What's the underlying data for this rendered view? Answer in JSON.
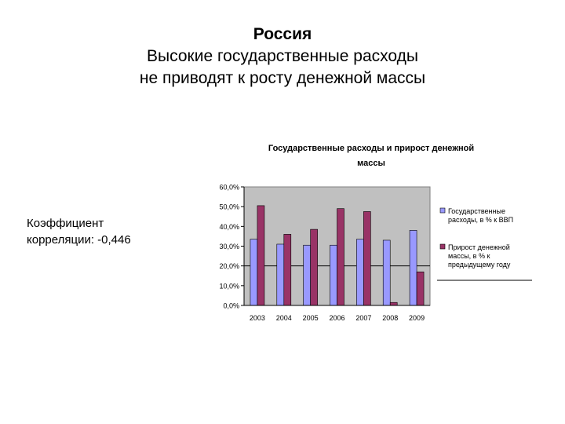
{
  "slide": {
    "title_line1": "Россия",
    "title_line2": "Высокие государственные расходы",
    "title_line3": "не приводят к росту денежной массы"
  },
  "correlation": {
    "line1": "Коэффициент",
    "line2": "корреляции: -0,446"
  },
  "chart_data": {
    "type": "bar",
    "title": "Государственные расходы и прирост денежной массы",
    "categories": [
      "2003",
      "2004",
      "2005",
      "2006",
      "2007",
      "2008",
      "2009"
    ],
    "ylim": [
      0,
      60
    ],
    "yticks": [
      "0,0%",
      "10,0%",
      "20,0%",
      "30,0%",
      "40,0%",
      "50,0%",
      "60,0%"
    ],
    "grid": false,
    "legend_position": "right",
    "series": [
      {
        "name": "Государственные расходы, в % к ВВП",
        "legend_lines": [
          "Государственные",
          "расходы, в % к ВВП"
        ],
        "color": "#9999ff",
        "values": [
          33.5,
          31,
          30.5,
          30.5,
          33.5,
          33,
          38
        ]
      },
      {
        "name": "Прирост денежной массы, в % к предыдущему году",
        "legend_lines": [
          "Прирост денежной",
          "массы, в % к",
          "предыдущему году"
        ],
        "color": "#993366",
        "values": [
          50.5,
          36,
          38.5,
          49,
          47.5,
          1.5,
          17
        ]
      }
    ],
    "reference_line": 20,
    "plot_background": "#c0c0c0"
  }
}
